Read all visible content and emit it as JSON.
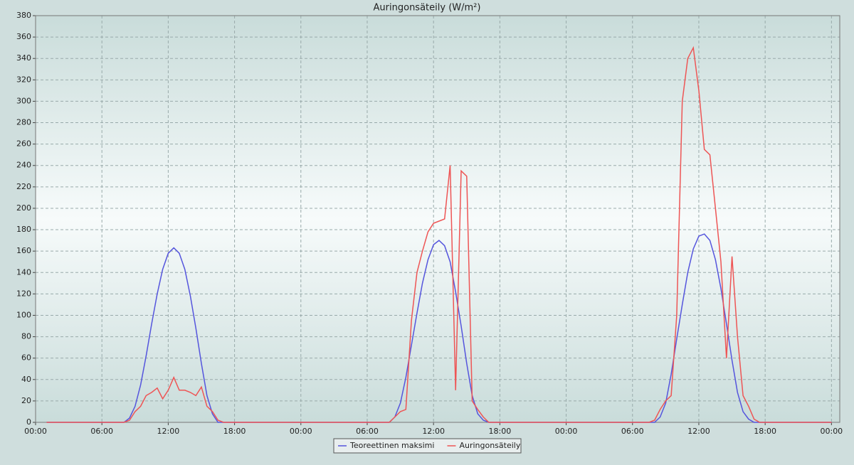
{
  "chart_data": {
    "type": "line",
    "title": "Auringonsäteily (W/m²)",
    "x": [
      1,
      1.5,
      2,
      2.5,
      3,
      3.5,
      4,
      4.5,
      5,
      5.5,
      6,
      6.5,
      7,
      7.5,
      8,
      8.5,
      9,
      9.5,
      10,
      10.5,
      11,
      11.5,
      12,
      12.5,
      13,
      13.5,
      14,
      14.5,
      15,
      15.5,
      16,
      16.5,
      17,
      17.5,
      18,
      18.5,
      19,
      19.5,
      20,
      20.5,
      21,
      21.5,
      22,
      22.5,
      23,
      23.5,
      24,
      24.5,
      25,
      25.5,
      26,
      26.5,
      27,
      27.5,
      28,
      28.5,
      29,
      29.5,
      30,
      30.5,
      31,
      31.5,
      32,
      32.5,
      33,
      33.5,
      34,
      34.5,
      35,
      35.5,
      36,
      36.5,
      37,
      37.5,
      38,
      38.5,
      39,
      39.5,
      40,
      40.5,
      41,
      41.5,
      42,
      42.5,
      43,
      43.5,
      44,
      44.5,
      45,
      45.5,
      46,
      46.5,
      47,
      47.5,
      48,
      48.5,
      49,
      49.5,
      50,
      50.5,
      51,
      51.5,
      52,
      52.5,
      53,
      53.5,
      54,
      54.5,
      55,
      55.5,
      56,
      56.5,
      57,
      57.5,
      58,
      58.5,
      59,
      59.5,
      60,
      60.5,
      61,
      61.5,
      62,
      62.5,
      63,
      63.5,
      64,
      64.5,
      65,
      65.5,
      66,
      66.5,
      67,
      67.5,
      68,
      68.5,
      69,
      69.5,
      70,
      70.5,
      71,
      71.5,
      72
    ],
    "series": [
      {
        "name": "Teoreettinen maksimi",
        "color": "#5555dd",
        "values": [
          0,
          0,
          0,
          0,
          0,
          0,
          0,
          0,
          0,
          0,
          0,
          0,
          0,
          0,
          0,
          4,
          15,
          35,
          62,
          92,
          120,
          143,
          158,
          163,
          158,
          143,
          118,
          88,
          55,
          25,
          8,
          0,
          0,
          0,
          0,
          0,
          0,
          0,
          0,
          0,
          0,
          0,
          0,
          0,
          0,
          0,
          0,
          0,
          0,
          0,
          0,
          0,
          0,
          0,
          0,
          0,
          0,
          0,
          0,
          0,
          0,
          0,
          0,
          5,
          18,
          42,
          72,
          102,
          130,
          152,
          166,
          170,
          165,
          150,
          122,
          90,
          55,
          25,
          8,
          2,
          0,
          0,
          0,
          0,
          0,
          0,
          0,
          0,
          0,
          0,
          0,
          0,
          0,
          0,
          0,
          0,
          0,
          0,
          0,
          0,
          0,
          0,
          0,
          0,
          0,
          0,
          0,
          0,
          0,
          0,
          0,
          5,
          18,
          45,
          78,
          110,
          140,
          162,
          174,
          176,
          170,
          152,
          125,
          92,
          58,
          28,
          10,
          3,
          0,
          0,
          0,
          0,
          0,
          0,
          0,
          0,
          0,
          0,
          0,
          0,
          0,
          0,
          0
        ]
      },
      {
        "name": "Auringonsäteily",
        "color": "#ee5555",
        "values": [
          0,
          0,
          0,
          0,
          0,
          0,
          0,
          0,
          0,
          0,
          0,
          0,
          0,
          0,
          0,
          2,
          10,
          15,
          25,
          28,
          32,
          22,
          30,
          42,
          30,
          30,
          28,
          25,
          33,
          15,
          10,
          2,
          0,
          0,
          0,
          0,
          0,
          0,
          0,
          0,
          0,
          0,
          0,
          0,
          0,
          0,
          0,
          0,
          0,
          0,
          0,
          0,
          0,
          0,
          0,
          0,
          0,
          0,
          0,
          0,
          0,
          0,
          0,
          5,
          10,
          12,
          95,
          140,
          160,
          178,
          186,
          188,
          190,
          240,
          30,
          235,
          230,
          20,
          12,
          5,
          0,
          0,
          0,
          0,
          0,
          0,
          0,
          0,
          0,
          0,
          0,
          0,
          0,
          0,
          0,
          0,
          0,
          0,
          0,
          0,
          0,
          0,
          0,
          0,
          0,
          0,
          0,
          0,
          0,
          0,
          2,
          12,
          20,
          25,
          100,
          300,
          340,
          350,
          310,
          255,
          250,
          200,
          150,
          60,
          155,
          80,
          25,
          15,
          3,
          0,
          0,
          0,
          0,
          0,
          0,
          0,
          0,
          0,
          0,
          0,
          0,
          0,
          0
        ]
      }
    ],
    "xlim": [
      0,
      72.75
    ],
    "xticks": [
      {
        "value": 0,
        "label": "00:00"
      },
      {
        "value": 6,
        "label": "06:00"
      },
      {
        "value": 12,
        "label": "12:00"
      },
      {
        "value": 18,
        "label": "18:00"
      },
      {
        "value": 24,
        "label": "00:00"
      },
      {
        "value": 30,
        "label": "06:00"
      },
      {
        "value": 36,
        "label": "12:00"
      },
      {
        "value": 42,
        "label": "18:00"
      },
      {
        "value": 48,
        "label": "00:00"
      },
      {
        "value": 54,
        "label": "06:00"
      },
      {
        "value": 60,
        "label": "12:00"
      },
      {
        "value": 66,
        "label": "18:00"
      },
      {
        "value": 72,
        "label": "00:00"
      }
    ],
    "ylim": [
      0,
      380
    ],
    "yticks": [
      0,
      20,
      40,
      60,
      80,
      100,
      120,
      140,
      160,
      180,
      200,
      220,
      240,
      260,
      280,
      300,
      320,
      340,
      360,
      380
    ],
    "grid": true,
    "legend": "bottom"
  }
}
